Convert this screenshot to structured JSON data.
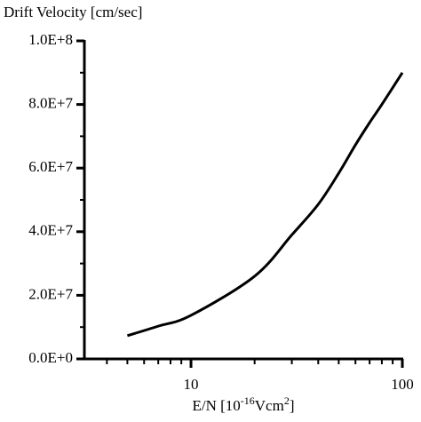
{
  "chart_data": {
    "type": "line",
    "title": "Drift Velocity [cm/sec]",
    "xlabel": [
      "E/N [10",
      "-16",
      "Vcm",
      "2",
      "]"
    ],
    "xscale": "log",
    "xlim": [
      3.13,
      100
    ],
    "xticks": [
      10,
      100
    ],
    "xminorticks": [
      4,
      5,
      6,
      7,
      8,
      9,
      20,
      30,
      40,
      50,
      60,
      70,
      80,
      90
    ],
    "ylim": [
      0,
      100000000
    ],
    "yticks": [
      {
        "value": 0,
        "label": "0.0E+0"
      },
      {
        "value": 20000000,
        "label": "2.0E+7"
      },
      {
        "value": 40000000,
        "label": "4.0E+7"
      },
      {
        "value": 60000000,
        "label": "6.0E+7"
      },
      {
        "value": 80000000,
        "label": "8.0E+7"
      },
      {
        "value": 100000000,
        "label": "1.0E+8"
      }
    ],
    "yminorticks": [
      10000000,
      30000000,
      50000000,
      70000000,
      90000000
    ],
    "grid": false,
    "color": "#000000",
    "x": [
      5,
      7,
      10,
      20,
      30,
      40,
      50,
      60,
      70,
      80,
      100
    ],
    "values": [
      7300000,
      10300000,
      13700000,
      26000000,
      39000000,
      48600000,
      58400000,
      67300000,
      74300000,
      80000000,
      90000000
    ]
  }
}
